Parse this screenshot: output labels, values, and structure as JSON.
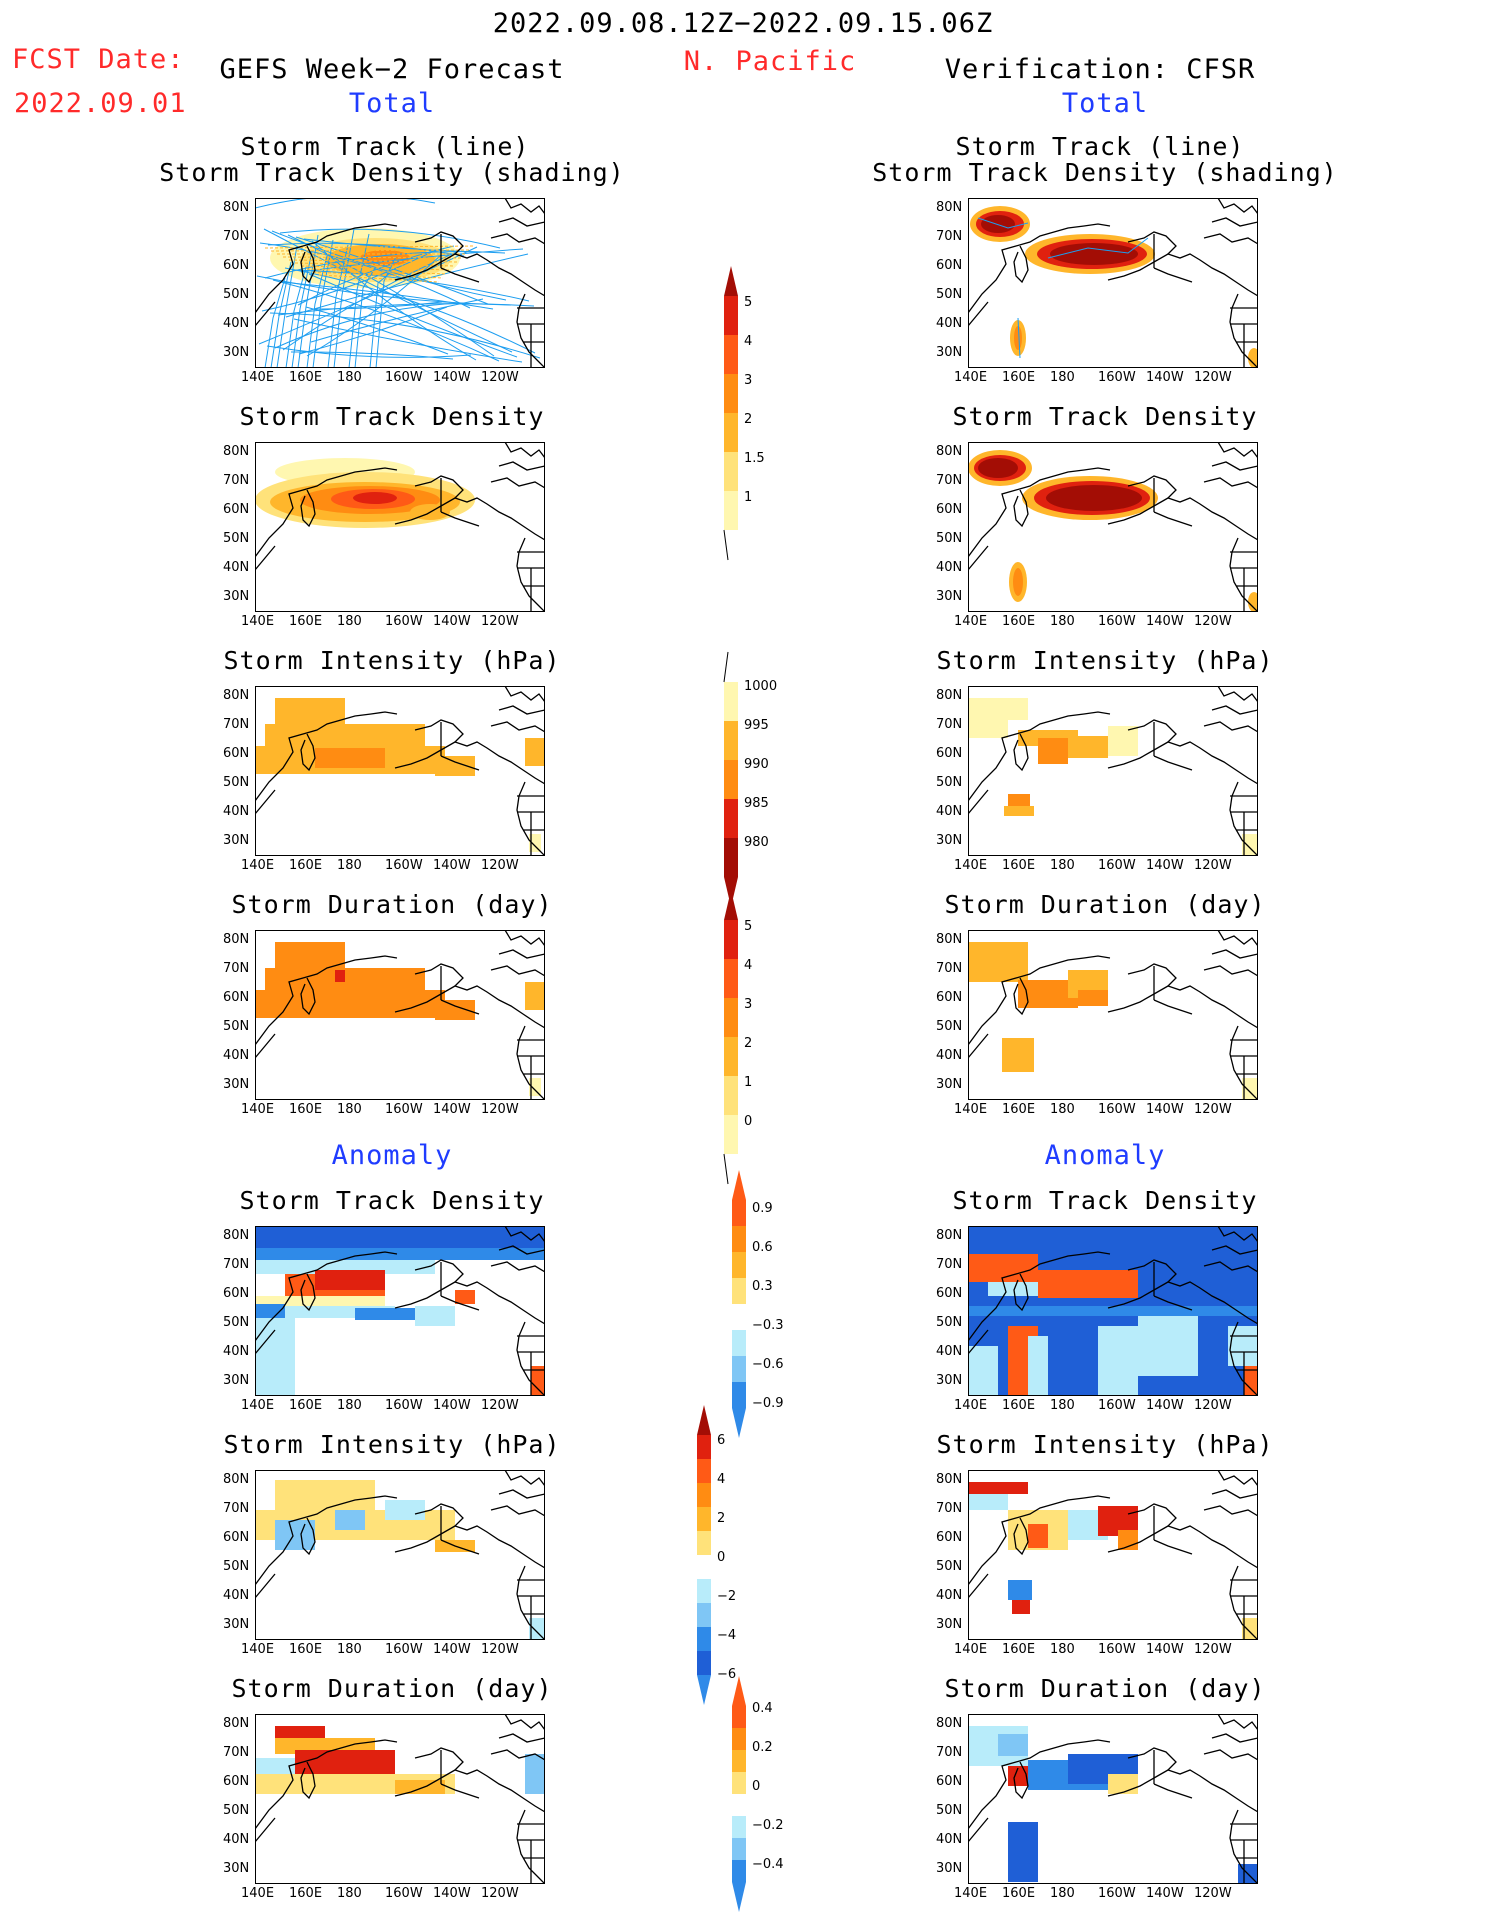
{
  "header": {
    "period": "2022.09.08.12Z−2022.09.15.06Z",
    "fcst_label": "FCST Date:",
    "fcst_date": "2022.09.01",
    "left_title": "GEFS Week−2 Forecast",
    "region": "N. Pacific",
    "right_title": "Verification: CFSR",
    "total_left": "Total",
    "total_right": "Total",
    "anomaly_left": "Anomaly",
    "anomaly_right": "Anomaly"
  },
  "panel_titles": {
    "track_line": "Storm Track (line)",
    "track_shading": "Storm Track Density (shading)",
    "density": "Storm Track Density",
    "intensity": "Storm Intensity (hPa)",
    "duration": "Storm Duration (day)"
  },
  "axes": {
    "lat_labels": [
      "80N",
      "70N",
      "60N",
      "50N",
      "40N",
      "30N"
    ],
    "lon_labels": [
      "140E",
      "160E",
      "180",
      "160W",
      "140W",
      "120W"
    ]
  },
  "colors": {
    "y1": "#fff7b0",
    "y2": "#ffe27a",
    "o1": "#ffb62b",
    "o2": "#ff8c12",
    "o3": "#ff5a16",
    "r1": "#e0210f",
    "r2": "#a30d05",
    "lb": "#b8ecfa",
    "mb": "#7fc6f5",
    "db": "#2f8ae8",
    "nb": "#1f5fd6",
    "track": "#1d9ef0"
  },
  "colorbars": [
    {
      "id": "density",
      "ticks": [
        "5",
        "4",
        "3",
        "2",
        "1.5",
        "1"
      ]
    },
    {
      "id": "intensity",
      "ticks": [
        "1000",
        "995",
        "990",
        "985",
        "980"
      ]
    },
    {
      "id": "duration",
      "ticks": [
        "5",
        "4",
        "3",
        "2",
        "1",
        "0"
      ]
    },
    {
      "id": "density-anom",
      "ticks": [
        "0.9",
        "0.6",
        "0.3",
        "−0.3",
        "−0.6",
        "−0.9"
      ]
    },
    {
      "id": "intensity-anom",
      "ticks": [
        "6",
        "4",
        "2",
        "0",
        "−2",
        "−4",
        "−6"
      ]
    },
    {
      "id": "duration-anom",
      "ticks": [
        "0.4",
        "0.2",
        "0",
        "−0.2",
        "−0.4"
      ]
    }
  ]
}
